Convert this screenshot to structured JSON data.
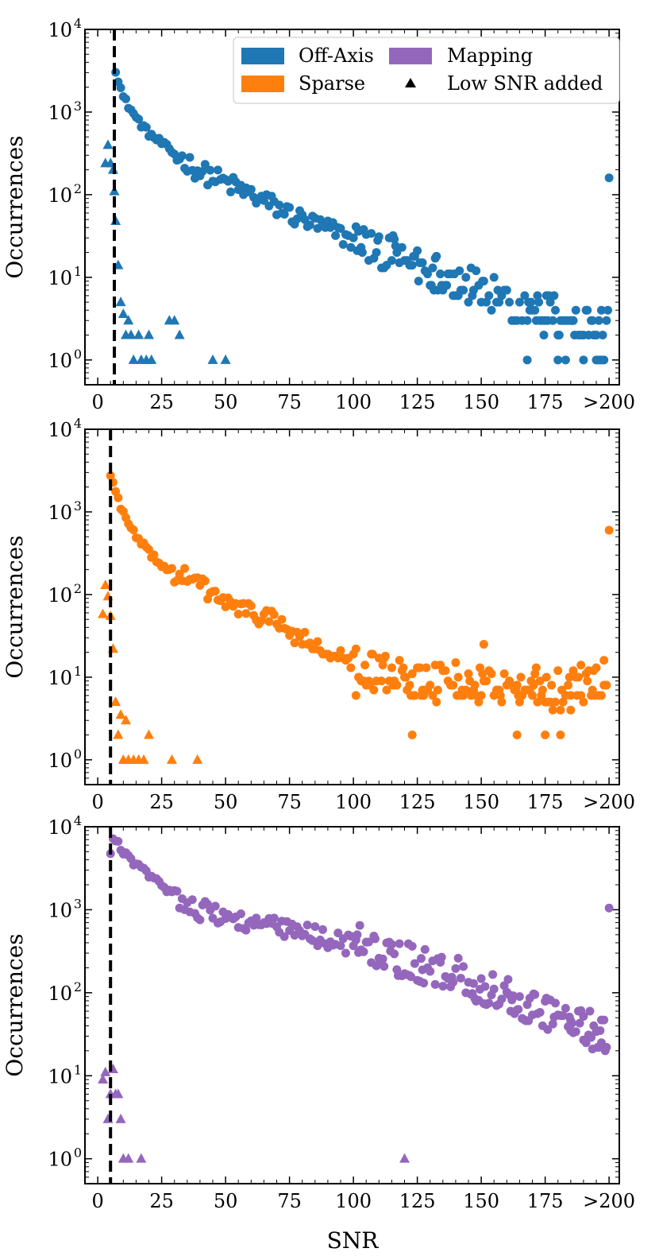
{
  "figure": {
    "xlabel": "SNR",
    "ylabel": "Occurrences"
  },
  "legend": {
    "entries": [
      {
        "label": "Off-Axis",
        "type": "patch",
        "color": "#1f77b4"
      },
      {
        "label": "Mapping",
        "type": "patch",
        "color": "#9467bd"
      },
      {
        "label": "Sparse",
        "type": "patch",
        "color": "#ff7f0e"
      },
      {
        "label": "Low SNR added",
        "type": "triangle",
        "color": "#000000"
      }
    ]
  },
  "chart_data": [
    {
      "type": "scatter",
      "title": "",
      "series_name": "Off-Axis",
      "color": "#1f77b4",
      "ylabel": "Occurrences",
      "xlabel": "",
      "yscale": "log",
      "xlim": [
        -5,
        204
      ],
      "ylim_log10": [
        -0.3,
        4
      ],
      "x_ticks": [
        0,
        25,
        50,
        75,
        100,
        125,
        150,
        175,
        200
      ],
      "x_tick_labels": [
        "0",
        "25",
        "50",
        "75",
        "100",
        "125",
        "150",
        "175",
        ">200"
      ],
      "y_tick_exponents": [
        0,
        1,
        2,
        3,
        4
      ],
      "threshold_snr": 6.5,
      "anchors": [
        [
          7,
          3300
        ],
        [
          10,
          1500
        ],
        [
          15,
          850
        ],
        [
          20,
          550
        ],
        [
          25,
          420
        ],
        [
          30,
          310
        ],
        [
          40,
          190
        ],
        [
          50,
          140
        ],
        [
          60,
          100
        ],
        [
          70,
          70
        ],
        [
          80,
          50
        ],
        [
          90,
          38
        ],
        [
          100,
          28
        ],
        [
          110,
          22
        ],
        [
          120,
          17
        ],
        [
          130,
          12
        ],
        [
          140,
          9
        ],
        [
          150,
          7
        ],
        [
          160,
          5.5
        ],
        [
          170,
          4.2
        ],
        [
          180,
          3.5
        ],
        [
          190,
          2.8
        ],
        [
          199,
          2.2
        ]
      ],
      "outliers": [
        [
          180,
          1
        ],
        [
          190,
          1
        ],
        [
          195,
          1
        ],
        [
          196,
          1
        ],
        [
          197,
          1
        ],
        [
          183,
          1
        ],
        [
          168,
          1
        ]
      ],
      "overflow_point": [
        200,
        160
      ],
      "low_snr_points": [
        [
          3,
          240
        ],
        [
          4,
          400
        ],
        [
          5,
          240
        ],
        [
          6,
          200
        ],
        [
          6.5,
          110
        ],
        [
          7,
          48
        ],
        [
          8,
          14
        ],
        [
          9,
          5
        ],
        [
          10,
          3.6
        ],
        [
          11,
          2
        ],
        [
          12,
          3
        ],
        [
          13,
          2
        ],
        [
          14,
          1
        ],
        [
          16,
          2
        ],
        [
          17,
          1
        ],
        [
          19,
          1
        ],
        [
          20,
          2
        ],
        [
          21,
          1
        ],
        [
          28,
          3
        ],
        [
          30,
          3
        ],
        [
          32,
          2
        ],
        [
          45,
          1
        ],
        [
          50,
          1
        ]
      ]
    },
    {
      "type": "scatter",
      "title": "",
      "series_name": "Sparse",
      "color": "#ff7f0e",
      "ylabel": "Occurrences",
      "xlabel": "",
      "yscale": "log",
      "xlim": [
        -5,
        204
      ],
      "ylim_log10": [
        -0.3,
        4
      ],
      "x_ticks": [
        0,
        25,
        50,
        75,
        100,
        125,
        150,
        175,
        200
      ],
      "x_tick_labels": [
        "0",
        "25",
        "50",
        "75",
        "100",
        "125",
        "150",
        "175",
        ">200"
      ],
      "y_tick_exponents": [
        0,
        1,
        2,
        3,
        4
      ],
      "threshold_snr": 5,
      "anchors": [
        [
          5,
          2800
        ],
        [
          8,
          1400
        ],
        [
          12,
          700
        ],
        [
          16,
          450
        ],
        [
          20,
          330
        ],
        [
          25,
          230
        ],
        [
          30,
          180
        ],
        [
          40,
          130
        ],
        [
          50,
          80
        ],
        [
          60,
          58
        ],
        [
          65,
          58
        ],
        [
          70,
          45
        ],
        [
          80,
          28
        ],
        [
          90,
          19
        ],
        [
          100,
          14
        ],
        [
          110,
          11
        ],
        [
          120,
          10
        ],
        [
          130,
          9
        ],
        [
          140,
          9
        ],
        [
          150,
          8.5
        ],
        [
          160,
          8
        ],
        [
          170,
          7.5
        ],
        [
          180,
          7
        ],
        [
          190,
          7
        ],
        [
          199,
          8
        ]
      ],
      "outliers": [
        [
          123,
          2
        ],
        [
          164,
          2
        ],
        [
          175,
          2
        ],
        [
          181,
          2
        ],
        [
          151,
          25
        ],
        [
          189,
          14
        ],
        [
          198,
          16
        ],
        [
          101,
          6
        ],
        [
          185,
          4
        ]
      ],
      "overflow_point": [
        200,
        600
      ],
      "low_snr_points": [
        [
          2,
          58
        ],
        [
          3,
          130
        ],
        [
          4,
          95
        ],
        [
          5,
          55
        ],
        [
          6,
          22
        ],
        [
          7,
          5
        ],
        [
          8,
          2
        ],
        [
          9,
          3.5
        ],
        [
          10,
          1
        ],
        [
          11,
          3
        ],
        [
          12,
          1
        ],
        [
          14,
          1
        ],
        [
          16,
          1
        ],
        [
          18,
          1
        ],
        [
          20,
          2
        ],
        [
          29,
          1
        ],
        [
          39,
          1
        ]
      ]
    },
    {
      "type": "scatter",
      "title": "",
      "series_name": "Mapping",
      "color": "#9467bd",
      "ylabel": "Occurrences",
      "xlabel": "SNR",
      "yscale": "log",
      "xlim": [
        -5,
        204
      ],
      "ylim_log10": [
        -0.3,
        4
      ],
      "x_ticks": [
        0,
        25,
        50,
        75,
        100,
        125,
        150,
        175,
        200
      ],
      "x_tick_labels": [
        "0",
        "25",
        "50",
        "75",
        "100",
        "125",
        "150",
        "175",
        ">200"
      ],
      "y_tick_exponents": [
        0,
        1,
        2,
        3,
        4
      ],
      "threshold_snr": 5,
      "anchors": [
        [
          5,
          4500
        ],
        [
          6,
          7500
        ],
        [
          10,
          5000
        ],
        [
          15,
          3500
        ],
        [
          20,
          2600
        ],
        [
          25,
          2000
        ],
        [
          30,
          1500
        ],
        [
          40,
          1000
        ],
        [
          50,
          820
        ],
        [
          60,
          700
        ],
        [
          70,
          600
        ],
        [
          80,
          520
        ],
        [
          90,
          450
        ],
        [
          100,
          380
        ],
        [
          110,
          310
        ],
        [
          120,
          240
        ],
        [
          130,
          190
        ],
        [
          140,
          160
        ],
        [
          150,
          120
        ],
        [
          160,
          95
        ],
        [
          170,
          70
        ],
        [
          180,
          50
        ],
        [
          190,
          40
        ],
        [
          199,
          28
        ]
      ],
      "outliers": [
        [
          185,
          35
        ],
        [
          190,
          52
        ],
        [
          197,
          25
        ]
      ],
      "overflow_point": [
        200,
        1050
      ],
      "low_snr_points": [
        [
          2,
          9
        ],
        [
          3,
          11
        ],
        [
          4,
          3
        ],
        [
          5,
          6
        ],
        [
          6,
          12
        ],
        [
          7,
          6
        ],
        [
          8,
          6
        ],
        [
          9,
          3
        ],
        [
          10,
          1
        ],
        [
          12,
          1
        ],
        [
          17,
          1
        ],
        [
          120,
          1
        ]
      ]
    }
  ]
}
